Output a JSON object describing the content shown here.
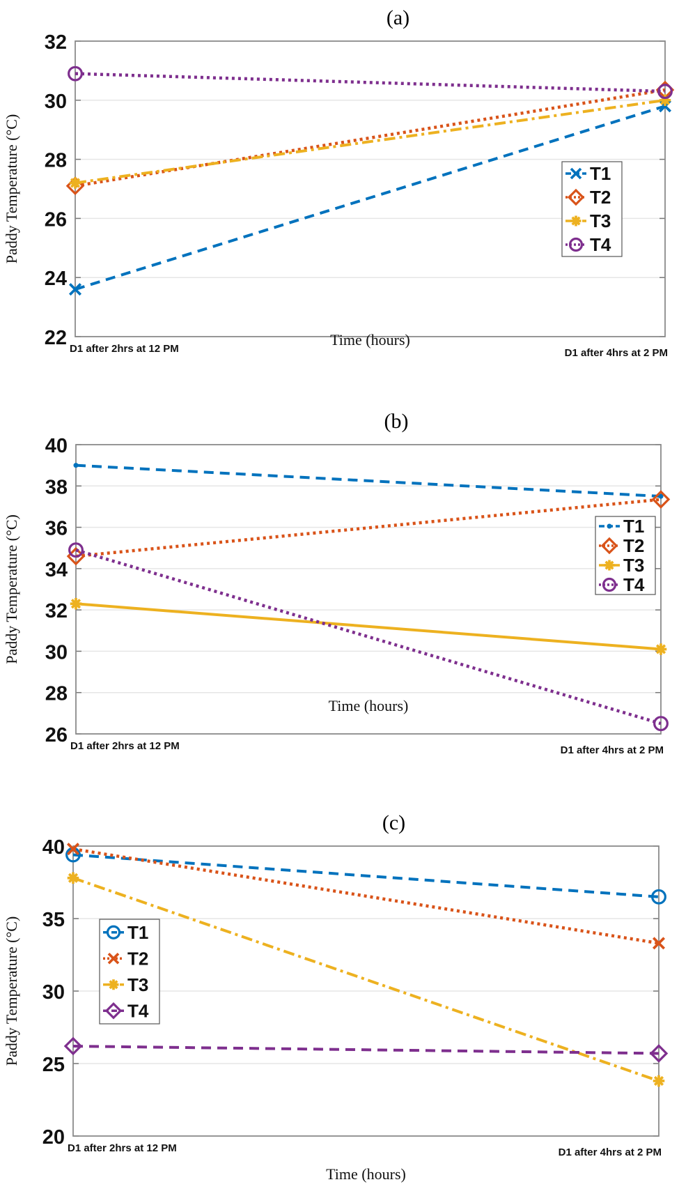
{
  "chart_data": [
    {
      "type": "line",
      "title": "(a)",
      "xlabel": "Time (hours)",
      "ylabel": "Paddy Temperature (°C)",
      "categories": [
        "D1 after 2hrs at 12 PM",
        "D1 after 4hrs at 2 PM"
      ],
      "ylim": [
        22,
        32
      ],
      "yticks": [
        22,
        24,
        26,
        28,
        30,
        32
      ],
      "grid": true,
      "legend_position": "right-middle",
      "series": [
        {
          "name": "T1",
          "values": [
            23.6,
            29.8
          ],
          "color": "#0072BD",
          "line": "dashed",
          "marker": "x"
        },
        {
          "name": "T2",
          "values": [
            27.1,
            30.35
          ],
          "color": "#D95319",
          "line": "dotted",
          "marker": "diamond"
        },
        {
          "name": "T3",
          "values": [
            27.2,
            30.0
          ],
          "color": "#EDB120",
          "line": "dashdot",
          "marker": "asterisk"
        },
        {
          "name": "T4",
          "values": [
            30.9,
            30.3
          ],
          "color": "#7E2F8E",
          "line": "dotted",
          "marker": "circle"
        }
      ]
    },
    {
      "type": "line",
      "title": "(b)",
      "xlabel": "Time (hours)",
      "ylabel": "Paddy Temperature (°C)",
      "categories": [
        "D1 after 2hrs at 12 PM",
        "D1 after 4hrs at 2 PM"
      ],
      "ylim": [
        26,
        40
      ],
      "yticks": [
        26,
        28,
        30,
        32,
        34,
        36,
        38,
        40
      ],
      "grid": true,
      "legend_position": "top-right",
      "series": [
        {
          "name": "T1",
          "values": [
            39.0,
            37.5
          ],
          "color": "#0072BD",
          "line": "dashed",
          "marker": "point"
        },
        {
          "name": "T2",
          "values": [
            34.6,
            37.35
          ],
          "color": "#D95319",
          "line": "dotted",
          "marker": "diamond"
        },
        {
          "name": "T3",
          "values": [
            32.3,
            30.1
          ],
          "color": "#EDB120",
          "line": "solid",
          "marker": "asterisk"
        },
        {
          "name": "T4",
          "values": [
            34.9,
            26.5
          ],
          "color": "#7E2F8E",
          "line": "dotted",
          "marker": "circle"
        }
      ]
    },
    {
      "type": "line",
      "title": "(c)",
      "xlabel": "Time (hours)",
      "ylabel": "Paddy Temperature (°C)",
      "categories": [
        "D1 after 2hrs at 12 PM",
        "D1 after 4hrs at 2 PM"
      ],
      "ylim": [
        20,
        40
      ],
      "yticks": [
        20,
        25,
        30,
        35,
        40
      ],
      "grid": true,
      "legend_position": "left-middle",
      "series": [
        {
          "name": "T1",
          "values": [
            39.4,
            36.5
          ],
          "color": "#0072BD",
          "line": "dashed",
          "marker": "circle"
        },
        {
          "name": "T2",
          "values": [
            39.8,
            33.3
          ],
          "color": "#D95319",
          "line": "dotted",
          "marker": "x"
        },
        {
          "name": "T3",
          "values": [
            37.8,
            23.8
          ],
          "color": "#EDB120",
          "line": "dashdot",
          "marker": "asterisk"
        },
        {
          "name": "T4",
          "values": [
            26.2,
            25.7
          ],
          "color": "#7E2F8E",
          "line": "dashed",
          "marker": "diamond"
        }
      ]
    }
  ]
}
